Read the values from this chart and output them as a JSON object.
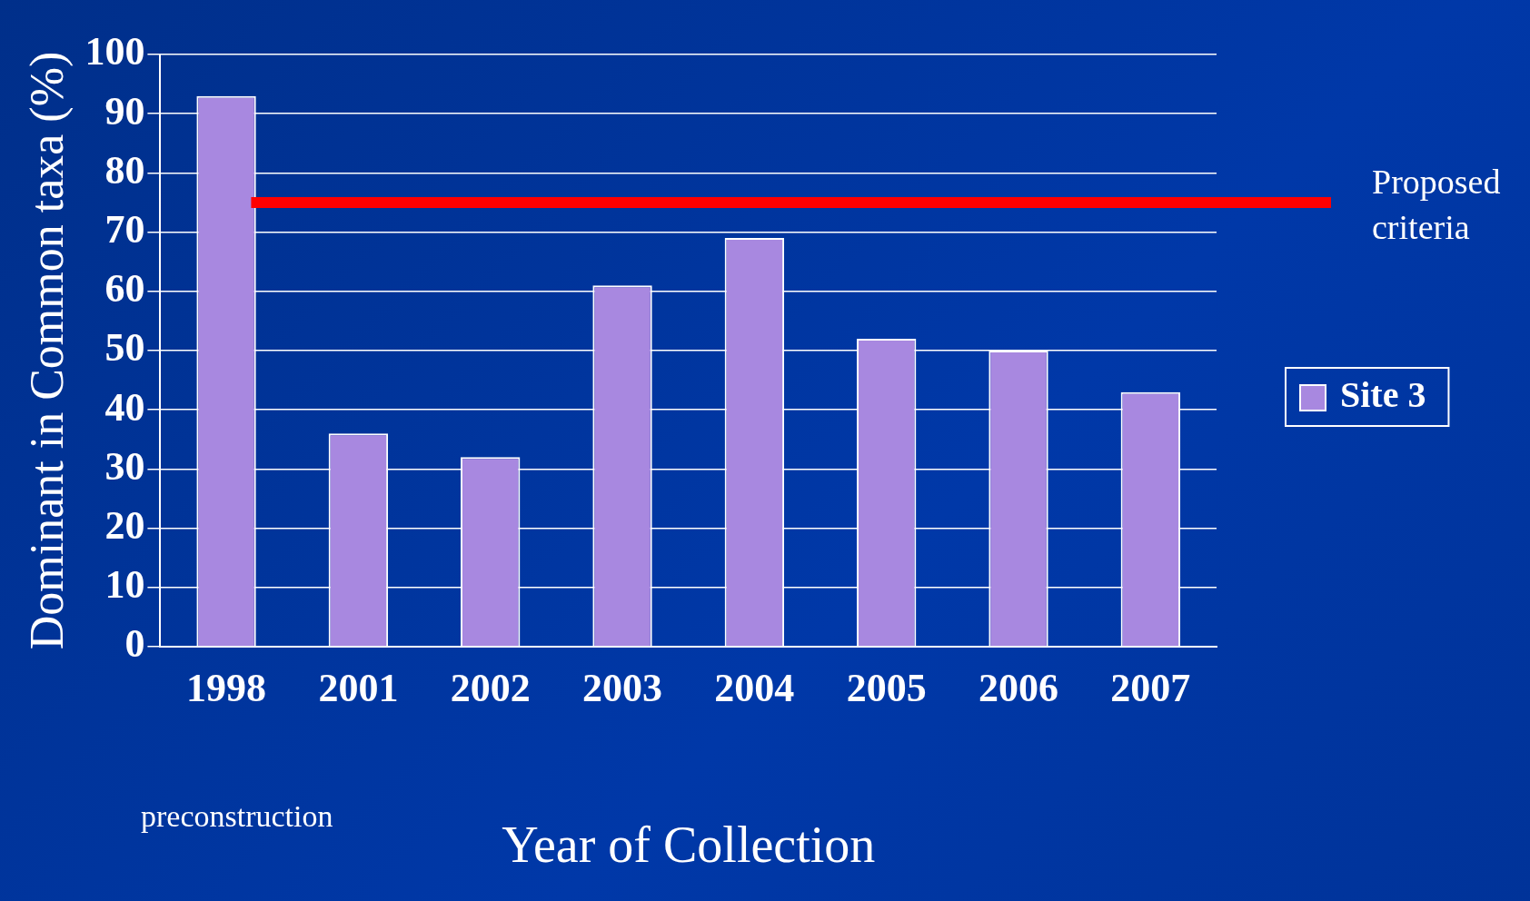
{
  "chart_data": {
    "type": "bar",
    "xlabel": "Year of Collection",
    "ylabel": "Dominant in Common taxa (%)",
    "categories": [
      "1998",
      "2001",
      "2002",
      "2003",
      "2004",
      "2005",
      "2006",
      "2007"
    ],
    "series": [
      {
        "name": "Site 3",
        "color": "#a888e0",
        "values": [
          93,
          36,
          32,
          61,
          69,
          52,
          50,
          43
        ]
      }
    ],
    "ylim": [
      0,
      100
    ],
    "yticks": [
      0,
      10,
      20,
      30,
      40,
      50,
      60,
      70,
      80,
      90,
      100
    ],
    "grid": "y",
    "legend": "right",
    "ref_lines": [
      {
        "axis": "y",
        "value": 75,
        "label": "Proposed criteria",
        "color": "#ff0000"
      }
    ],
    "annotations": [
      "preconstruction"
    ]
  }
}
